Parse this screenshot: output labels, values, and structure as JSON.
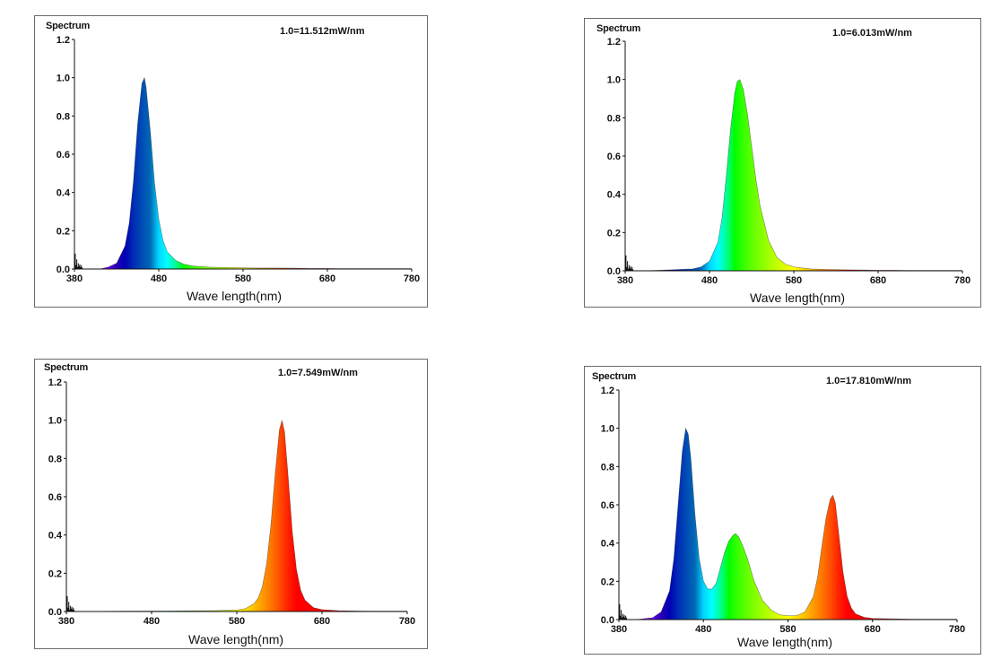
{
  "chart_data": [
    {
      "type": "area",
      "y_title": "Spectrum",
      "scale_note": "1.0=11.512mW/nm",
      "xlabel": "Wave length(nm)",
      "xlim": [
        380,
        780
      ],
      "ylim": [
        0.0,
        1.2
      ],
      "x_ticks": [
        "380",
        "480",
        "580",
        "680",
        "780"
      ],
      "y_ticks": [
        "0.0",
        "0.2",
        "0.4",
        "0.6",
        "0.8",
        "1.0",
        "1.2"
      ],
      "fill": "wavelength-color gradient",
      "peaks": [
        {
          "x": 463,
          "y": 1.0
        }
      ],
      "x": [
        380,
        390,
        400,
        410,
        420,
        430,
        440,
        445,
        450,
        455,
        460,
        463,
        465,
        470,
        475,
        480,
        485,
        490,
        500,
        510,
        520,
        540,
        560,
        580,
        600,
        620,
        640,
        660,
        680,
        700,
        720,
        740,
        760,
        780
      ],
      "y": [
        0.0,
        0.0,
        0.0,
        0.0,
        0.01,
        0.03,
        0.12,
        0.24,
        0.46,
        0.76,
        0.97,
        1.0,
        0.95,
        0.72,
        0.45,
        0.26,
        0.15,
        0.09,
        0.045,
        0.025,
        0.016,
        0.01,
        0.008,
        0.006,
        0.005,
        0.005,
        0.004,
        0.003,
        0.003,
        0.002,
        0.002,
        0.002,
        0.002,
        0.002
      ]
    },
    {
      "type": "area",
      "y_title": "Spectrum",
      "scale_note": "1.0=6.013mW/nm",
      "xlabel": "Wave length(nm)",
      "xlim": [
        380,
        780
      ],
      "ylim": [
        0.0,
        1.2
      ],
      "x_ticks": [
        "380",
        "480",
        "580",
        "680",
        "780"
      ],
      "y_ticks": [
        "0.0",
        "0.2",
        "0.4",
        "0.6",
        "0.8",
        "1.0",
        "1.2"
      ],
      "fill": "wavelength-color gradient",
      "peaks": [
        {
          "x": 516,
          "y": 1.0
        }
      ],
      "x": [
        380,
        400,
        420,
        440,
        460,
        470,
        480,
        490,
        495,
        500,
        505,
        510,
        513,
        516,
        520,
        525,
        530,
        535,
        540,
        550,
        560,
        570,
        580,
        600,
        620,
        640,
        660,
        680,
        700,
        720,
        740,
        760,
        780
      ],
      "y": [
        0.0,
        0.0,
        0.003,
        0.006,
        0.01,
        0.02,
        0.05,
        0.15,
        0.28,
        0.5,
        0.74,
        0.93,
        0.99,
        1.0,
        0.95,
        0.82,
        0.65,
        0.48,
        0.34,
        0.16,
        0.07,
        0.035,
        0.02,
        0.01,
        0.007,
        0.005,
        0.004,
        0.003,
        0.003,
        0.002,
        0.002,
        0.002,
        0.002
      ]
    },
    {
      "type": "area",
      "y_title": "Spectrum",
      "scale_note": "1.0=7.549mW/nm",
      "xlabel": "Wave length(nm)",
      "xlim": [
        380,
        780
      ],
      "ylim": [
        0.0,
        1.2
      ],
      "x_ticks": [
        "380",
        "480",
        "580",
        "680",
        "780"
      ],
      "y_ticks": [
        "0.0",
        "0.2",
        "0.4",
        "0.6",
        "0.8",
        "1.0",
        "1.2"
      ],
      "fill": "wavelength-color gradient",
      "peaks": [
        {
          "x": 633,
          "y": 1.0
        }
      ],
      "x": [
        380,
        400,
        450,
        500,
        550,
        580,
        590,
        600,
        605,
        610,
        615,
        620,
        625,
        630,
        633,
        636,
        640,
        645,
        650,
        655,
        660,
        670,
        680,
        700,
        720,
        740,
        760,
        780
      ],
      "y": [
        0.0,
        0.0,
        0.002,
        0.003,
        0.004,
        0.008,
        0.015,
        0.04,
        0.07,
        0.13,
        0.25,
        0.45,
        0.72,
        0.95,
        1.0,
        0.94,
        0.72,
        0.42,
        0.22,
        0.11,
        0.06,
        0.02,
        0.01,
        0.004,
        0.003,
        0.002,
        0.002,
        0.002
      ]
    },
    {
      "type": "area",
      "y_title": "Spectrum",
      "scale_note": "1.0=17.810mW/nm",
      "xlabel": "Wave length(nm)",
      "xlim": [
        380,
        780
      ],
      "ylim": [
        0.0,
        1.2
      ],
      "x_ticks": [
        "380",
        "480",
        "580",
        "680",
        "780"
      ],
      "y_ticks": [
        "0.0",
        "0.2",
        "0.4",
        "0.6",
        "0.8",
        "1.0",
        "1.2"
      ],
      "fill": "wavelength-color gradient",
      "peaks": [
        {
          "x": 459,
          "y": 1.0
        },
        {
          "x": 518,
          "y": 0.45
        },
        {
          "x": 633,
          "y": 0.65
        }
      ],
      "x": [
        380,
        400,
        420,
        430,
        440,
        445,
        450,
        455,
        459,
        462,
        465,
        470,
        475,
        480,
        485,
        490,
        495,
        500,
        505,
        510,
        515,
        518,
        522,
        527,
        532,
        540,
        550,
        560,
        570,
        580,
        590,
        600,
        610,
        615,
        620,
        625,
        630,
        633,
        636,
        640,
        645,
        650,
        655,
        660,
        670,
        680,
        700,
        720,
        740,
        760,
        780
      ],
      "y": [
        0.0,
        0.0,
        0.01,
        0.04,
        0.15,
        0.32,
        0.6,
        0.88,
        1.0,
        0.97,
        0.85,
        0.55,
        0.32,
        0.2,
        0.16,
        0.16,
        0.19,
        0.27,
        0.35,
        0.41,
        0.44,
        0.45,
        0.43,
        0.38,
        0.32,
        0.2,
        0.1,
        0.05,
        0.025,
        0.02,
        0.02,
        0.04,
        0.12,
        0.22,
        0.38,
        0.53,
        0.63,
        0.65,
        0.61,
        0.45,
        0.25,
        0.12,
        0.06,
        0.03,
        0.012,
        0.006,
        0.004,
        0.003,
        0.002,
        0.002,
        0.002
      ]
    }
  ]
}
